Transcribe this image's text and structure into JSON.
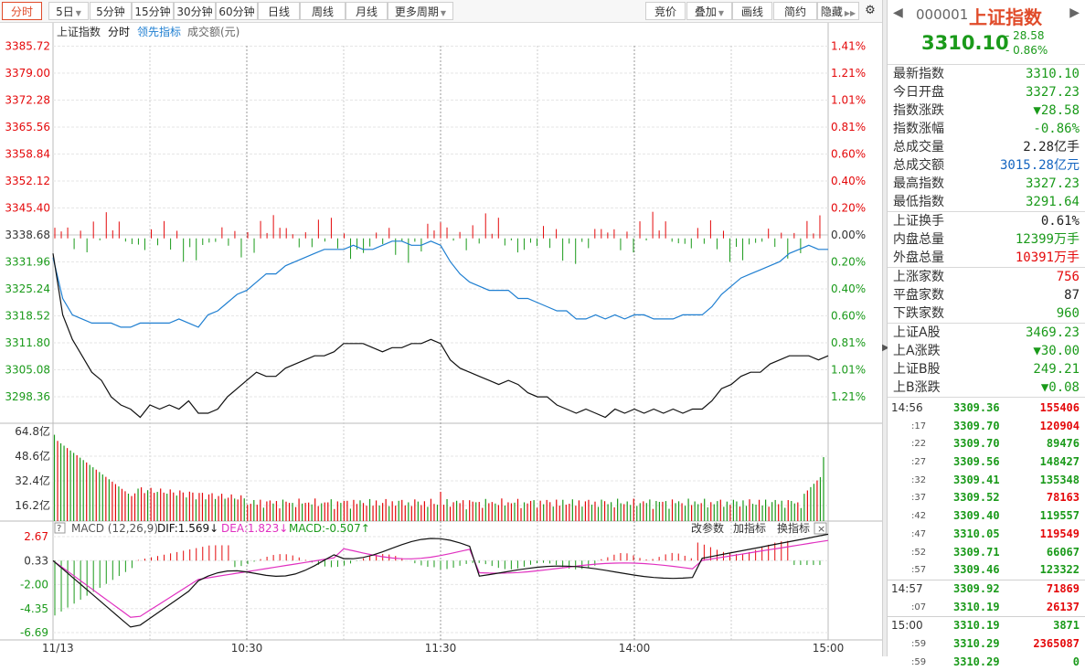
{
  "toolbar": {
    "periods": [
      "分时",
      "5日",
      "5分钟",
      "15分钟",
      "30分钟",
      "60分钟",
      "日线",
      "周线",
      "月线",
      "更多周期"
    ],
    "right_buttons": [
      "竞价",
      "叠加",
      "画线",
      "简约",
      "隐藏"
    ]
  },
  "chart": {
    "legend": {
      "name": "上证指数",
      "mode": "分时",
      "leading": "领先指标",
      "amount": "成交额(元)"
    },
    "price_axis_labels": [
      "3385.72",
      "3379.00",
      "3372.28",
      "3365.56",
      "3358.84",
      "3352.12",
      "3345.40",
      "3338.68",
      "3331.96",
      "3325.24",
      "3318.52",
      "3311.80",
      "3305.08",
      "3298.36"
    ],
    "pct_axis_labels": [
      "1.41%",
      "1.21%",
      "1.01%",
      "0.81%",
      "0.60%",
      "0.40%",
      "0.20%",
      "0.00%",
      "0.20%",
      "0.40%",
      "0.60%",
      "0.81%",
      "1.01%",
      "1.21%"
    ],
    "volume_axis_labels": [
      "64.8亿",
      "48.6亿",
      "32.4亿",
      "16.2亿"
    ],
    "macd_header": {
      "help": "?",
      "title": "MACD (12,26,9)",
      "dif": "DIF:1.569",
      "dea": "DEA:1.823",
      "macd": "MACD:-0.507",
      "btn_params": "改参数",
      "btn_add": "加指标",
      "btn_switch": "换指标",
      "close": "×"
    },
    "macd_axis_labels": [
      "2.67",
      "0.33",
      "-2.00",
      "-4.35",
      "-6.69"
    ],
    "time_labels": [
      "11/13",
      "10:30",
      "11:30",
      "14:00",
      "15:00"
    ],
    "colors": {
      "up": "#e4080a",
      "down": "#1a9a1a",
      "price_line": "#111111",
      "leading_line": "#1f7fd1",
      "dea_line": "#e030c0",
      "grid": "#e6e6e6"
    }
  },
  "chart_data": {
    "type": "line",
    "price_series_points": [
      [
        0,
        3335
      ],
      [
        3,
        3320
      ],
      [
        6,
        3314
      ],
      [
        9,
        3310
      ],
      [
        12,
        3306
      ],
      [
        15,
        3304
      ],
      [
        18,
        3300
      ],
      [
        21,
        3298
      ],
      [
        24,
        3297
      ],
      [
        27,
        3295
      ],
      [
        30,
        3298
      ],
      [
        33,
        3297
      ],
      [
        36,
        3298
      ],
      [
        39,
        3297
      ],
      [
        42,
        3299
      ],
      [
        45,
        3296
      ],
      [
        48,
        3296
      ],
      [
        51,
        3297
      ],
      [
        54,
        3300
      ],
      [
        57,
        3302
      ],
      [
        60,
        3304
      ],
      [
        63,
        3306
      ],
      [
        66,
        3305
      ],
      [
        69,
        3305
      ],
      [
        72,
        3307
      ],
      [
        75,
        3308
      ],
      [
        78,
        3309
      ],
      [
        81,
        3310
      ],
      [
        84,
        3310
      ],
      [
        87,
        3311
      ],
      [
        90,
        3313
      ],
      [
        93,
        3313
      ],
      [
        96,
        3313
      ],
      [
        99,
        3312
      ],
      [
        102,
        3311
      ],
      [
        105,
        3312
      ],
      [
        108,
        3312
      ],
      [
        111,
        3313
      ],
      [
        114,
        3313
      ],
      [
        117,
        3314
      ],
      [
        120,
        3313
      ],
      [
        123,
        3309
      ],
      [
        126,
        3307
      ],
      [
        129,
        3306
      ],
      [
        132,
        3305
      ],
      [
        135,
        3304
      ],
      [
        138,
        3303
      ],
      [
        141,
        3304
      ],
      [
        144,
        3303
      ],
      [
        147,
        3301
      ],
      [
        150,
        3300
      ],
      [
        153,
        3300
      ],
      [
        156,
        3298
      ],
      [
        159,
        3297
      ],
      [
        162,
        3296
      ],
      [
        165,
        3297
      ],
      [
        168,
        3296
      ],
      [
        171,
        3295
      ],
      [
        174,
        3297
      ],
      [
        177,
        3296
      ],
      [
        180,
        3297
      ],
      [
        183,
        3296
      ],
      [
        186,
        3297
      ],
      [
        189,
        3296
      ],
      [
        192,
        3297
      ],
      [
        195,
        3296
      ],
      [
        198,
        3297
      ],
      [
        201,
        3297
      ],
      [
        204,
        3299
      ],
      [
        207,
        3302
      ],
      [
        210,
        3303
      ],
      [
        213,
        3305
      ],
      [
        216,
        3306
      ],
      [
        219,
        3306
      ],
      [
        222,
        3308
      ],
      [
        225,
        3309
      ],
      [
        228,
        3310
      ],
      [
        231,
        3310
      ],
      [
        234,
        3310
      ],
      [
        237,
        3309
      ],
      [
        240,
        3310
      ]
    ],
    "leading_series_points": [
      [
        0,
        3334
      ],
      [
        3,
        3324
      ],
      [
        6,
        3320
      ],
      [
        9,
        3319
      ],
      [
        12,
        3318
      ],
      [
        15,
        3318
      ],
      [
        18,
        3318
      ],
      [
        21,
        3317
      ],
      [
        24,
        3317
      ],
      [
        27,
        3318
      ],
      [
        30,
        3318
      ],
      [
        33,
        3318
      ],
      [
        36,
        3318
      ],
      [
        39,
        3319
      ],
      [
        42,
        3318
      ],
      [
        45,
        3317
      ],
      [
        48,
        3320
      ],
      [
        51,
        3321
      ],
      [
        54,
        3323
      ],
      [
        57,
        3325
      ],
      [
        60,
        3326
      ],
      [
        63,
        3328
      ],
      [
        66,
        3330
      ],
      [
        69,
        3330
      ],
      [
        72,
        3332
      ],
      [
        75,
        3333
      ],
      [
        78,
        3334
      ],
      [
        81,
        3335
      ],
      [
        84,
        3336
      ],
      [
        87,
        3336
      ],
      [
        90,
        3336
      ],
      [
        93,
        3337
      ],
      [
        96,
        3336
      ],
      [
        99,
        3336
      ],
      [
        102,
        3337
      ],
      [
        105,
        3338
      ],
      [
        108,
        3338
      ],
      [
        111,
        3337
      ],
      [
        114,
        3337
      ],
      [
        117,
        3338
      ],
      [
        120,
        3337
      ],
      [
        123,
        3333
      ],
      [
        126,
        3330
      ],
      [
        129,
        3328
      ],
      [
        132,
        3327
      ],
      [
        135,
        3326
      ],
      [
        138,
        3326
      ],
      [
        141,
        3326
      ],
      [
        144,
        3324
      ],
      [
        147,
        3324
      ],
      [
        150,
        3323
      ],
      [
        153,
        3322
      ],
      [
        156,
        3321
      ],
      [
        159,
        3321
      ],
      [
        162,
        3319
      ],
      [
        165,
        3319
      ],
      [
        168,
        3320
      ],
      [
        171,
        3319
      ],
      [
        174,
        3320
      ],
      [
        177,
        3319
      ],
      [
        180,
        3320
      ],
      [
        183,
        3320
      ],
      [
        186,
        3319
      ],
      [
        189,
        3319
      ],
      [
        192,
        3319
      ],
      [
        195,
        3320
      ],
      [
        198,
        3320
      ],
      [
        201,
        3320
      ],
      [
        204,
        3322
      ],
      [
        207,
        3325
      ],
      [
        210,
        3327
      ],
      [
        213,
        3329
      ],
      [
        216,
        3330
      ],
      [
        219,
        3331
      ],
      [
        222,
        3332
      ],
      [
        225,
        3333
      ],
      [
        228,
        3335
      ],
      [
        231,
        3336
      ],
      [
        234,
        3337
      ],
      [
        237,
        3336
      ],
      [
        240,
        3336
      ]
    ],
    "x_range": [
      0,
      240
    ],
    "y_range": [
      3294.0,
      3385.72
    ],
    "base_value": 3338.68,
    "volume_ylim": [
      0,
      70
    ]
  },
  "panel": {
    "code": "000001",
    "name": "上证指数",
    "price": "3310.10",
    "change": "- 28.58",
    "change_pct": "- 0.86%",
    "stats1": [
      {
        "label": "最新指数",
        "value": "3310.10",
        "color": "green"
      },
      {
        "label": "今日开盘",
        "value": "3327.23",
        "color": "green"
      },
      {
        "label": "指数涨跌",
        "value": "▼28.58",
        "color": "green"
      },
      {
        "label": "指数涨幅",
        "value": "-0.86%",
        "color": "green"
      },
      {
        "label": "总成交量",
        "value": "2.28亿手",
        "color": "black"
      },
      {
        "label": "总成交额",
        "value": "3015.28亿元",
        "color": "blue"
      },
      {
        "label": "最高指数",
        "value": "3327.23",
        "color": "green"
      },
      {
        "label": "最低指数",
        "value": "3291.64",
        "color": "green"
      }
    ],
    "stats2": [
      {
        "label": "上证换手",
        "value": "0.61%",
        "color": "black"
      },
      {
        "label": "内盘总量",
        "value": "12399万手",
        "color": "green"
      },
      {
        "label": "外盘总量",
        "value": "10391万手",
        "color": "red"
      }
    ],
    "stats3": [
      {
        "label": "上涨家数",
        "value": "756",
        "color": "red"
      },
      {
        "label": "平盘家数",
        "value": "87",
        "color": "black"
      },
      {
        "label": "下跌家数",
        "value": "960",
        "color": "green"
      }
    ],
    "stats4": [
      {
        "label": "上证A股",
        "value": "3469.23",
        "color": "green"
      },
      {
        "label": "上A涨跌",
        "value": "▼30.00",
        "color": "green"
      },
      {
        "label": "上证B股",
        "value": "249.21",
        "color": "green"
      },
      {
        "label": "上B涨跌",
        "value": "▼0.08",
        "color": "green"
      }
    ],
    "ticks": [
      {
        "time": "14:56",
        "sub": false,
        "price": "3309.36",
        "vol": "155406",
        "color": "red"
      },
      {
        "time": ":17",
        "sub": true,
        "price": "3309.70",
        "vol": "120904",
        "color": "red"
      },
      {
        "time": ":22",
        "sub": true,
        "price": "3309.70",
        "vol": "89476",
        "color": "green"
      },
      {
        "time": ":27",
        "sub": true,
        "price": "3309.56",
        "vol": "148427",
        "color": "green"
      },
      {
        "time": ":32",
        "sub": true,
        "price": "3309.41",
        "vol": "135348",
        "color": "green"
      },
      {
        "time": ":37",
        "sub": true,
        "price": "3309.52",
        "vol": "78163",
        "color": "red"
      },
      {
        "time": ":42",
        "sub": true,
        "price": "3309.40",
        "vol": "119557",
        "color": "green"
      },
      {
        "time": ":47",
        "sub": true,
        "price": "3310.05",
        "vol": "119549",
        "color": "red"
      },
      {
        "time": ":52",
        "sub": true,
        "price": "3309.71",
        "vol": "66067",
        "color": "green"
      },
      {
        "time": ":57",
        "sub": true,
        "price": "3309.46",
        "vol": "123322",
        "color": "green"
      },
      {
        "time": "14:57",
        "sub": false,
        "price": "3309.92",
        "vol": "71869",
        "color": "red",
        "sep": true
      },
      {
        "time": ":07",
        "sub": true,
        "price": "3310.19",
        "vol": "26137",
        "color": "red"
      },
      {
        "time": "15:00",
        "sub": false,
        "price": "3310.19",
        "vol": "3871",
        "color": "green",
        "sep": true
      },
      {
        "time": ":59",
        "sub": true,
        "price": "3310.29",
        "vol": "2365087",
        "color": "red"
      },
      {
        "time": ":59",
        "sub": true,
        "price": "3310.29",
        "vol": "0",
        "color": "green"
      }
    ]
  }
}
